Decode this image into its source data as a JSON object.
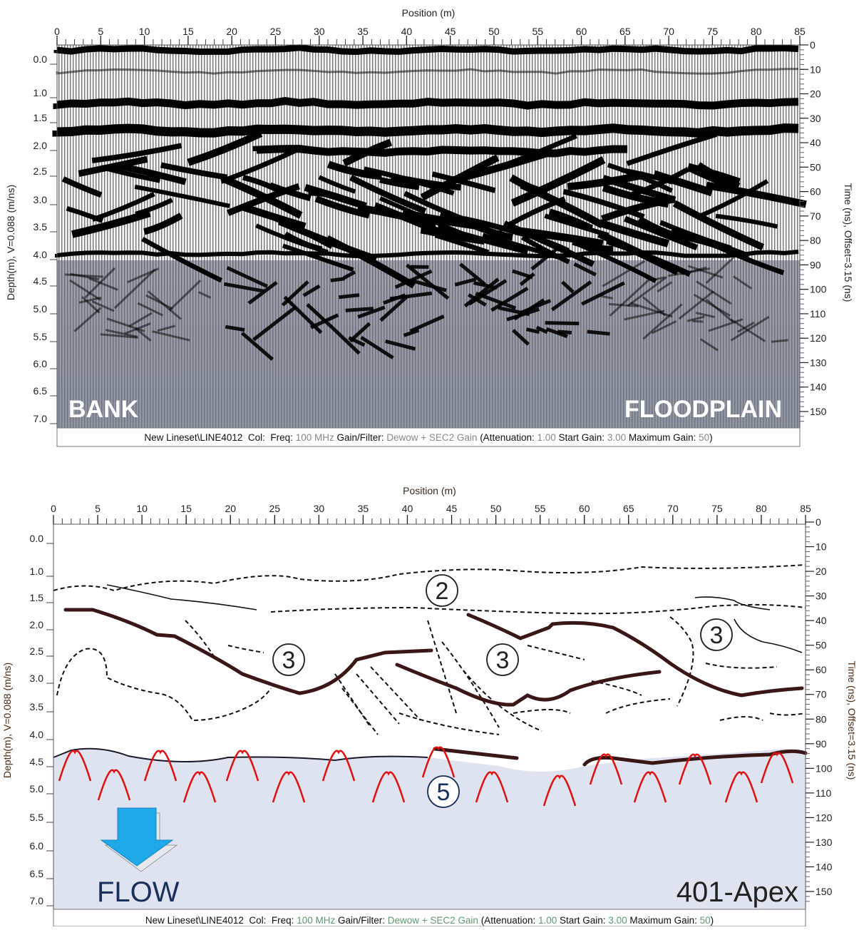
{
  "panels": [
    {
      "x_axis_title": "Position (m)",
      "x_ticks": [
        0,
        5,
        10,
        15,
        20,
        25,
        30,
        35,
        40,
        45,
        50,
        55,
        60,
        65,
        70,
        75,
        80,
        85
      ],
      "left_axis_title": "Depth(m), V=0.088 (m/ns)",
      "depth_ticks": [
        "0.0",
        "1.0",
        "1.5",
        "2.0",
        "2.5",
        "3.0",
        "3.5",
        "4.0",
        "4.5",
        "5.0",
        "5.5",
        "6.0",
        "6.5",
        "7.0"
      ],
      "right_axis_title": "Time (ns), Offset=3.15 (ns)",
      "time_ticks": [
        0,
        10,
        20,
        30,
        40,
        50,
        60,
        70,
        80,
        90,
        100,
        110,
        120,
        130,
        140,
        150
      ],
      "labels": [
        "BANK",
        "FLOODPLAIN"
      ],
      "footer": [
        "New Lineset\\LINE4012  Col:  Freq: ",
        "100 MHz",
        " Gain/Filter: ",
        "Dewow + SEC2 Gain",
        " (Attenuation: ",
        "1.00",
        " Start Gain: ",
        "3.00",
        " Maximum Gain: ",
        "50",
        ")"
      ]
    },
    {
      "x_axis_title": "Position (m)",
      "x_ticks": [
        0,
        5,
        10,
        15,
        20,
        25,
        30,
        35,
        40,
        45,
        50,
        55,
        60,
        65,
        70,
        75,
        80,
        85
      ],
      "left_axis_title": "Depth(m), V=0.088 (m/ns)",
      "depth_ticks": [
        "0.0",
        "1.0",
        "1.5",
        "2.0",
        "2.5",
        "3.0",
        "3.5",
        "4.0",
        "4.5",
        "5.0",
        "5.5",
        "6.0",
        "6.5",
        "7.0"
      ],
      "right_axis_title": "Time (ns), Offset=3.15 (ns)",
      "time_ticks": [
        0,
        10,
        20,
        30,
        40,
        50,
        60,
        70,
        80,
        90,
        100,
        110,
        120,
        130,
        140,
        150
      ],
      "unit_labels": [
        "2",
        "3",
        "3",
        "3",
        "5"
      ],
      "flow_label": "FLOW",
      "site_label": "401-Apex",
      "footer": [
        "New Lineset\\LINE4012  Col:  Freq: ",
        "100 MHz",
        " Gain/Filter: ",
        "Dewow + SEC2 Gain",
        " (Attenuation: ",
        "1.00",
        " Start Gain: ",
        "3.00",
        " Maximum Gain: ",
        "50",
        ")"
      ]
    }
  ]
}
